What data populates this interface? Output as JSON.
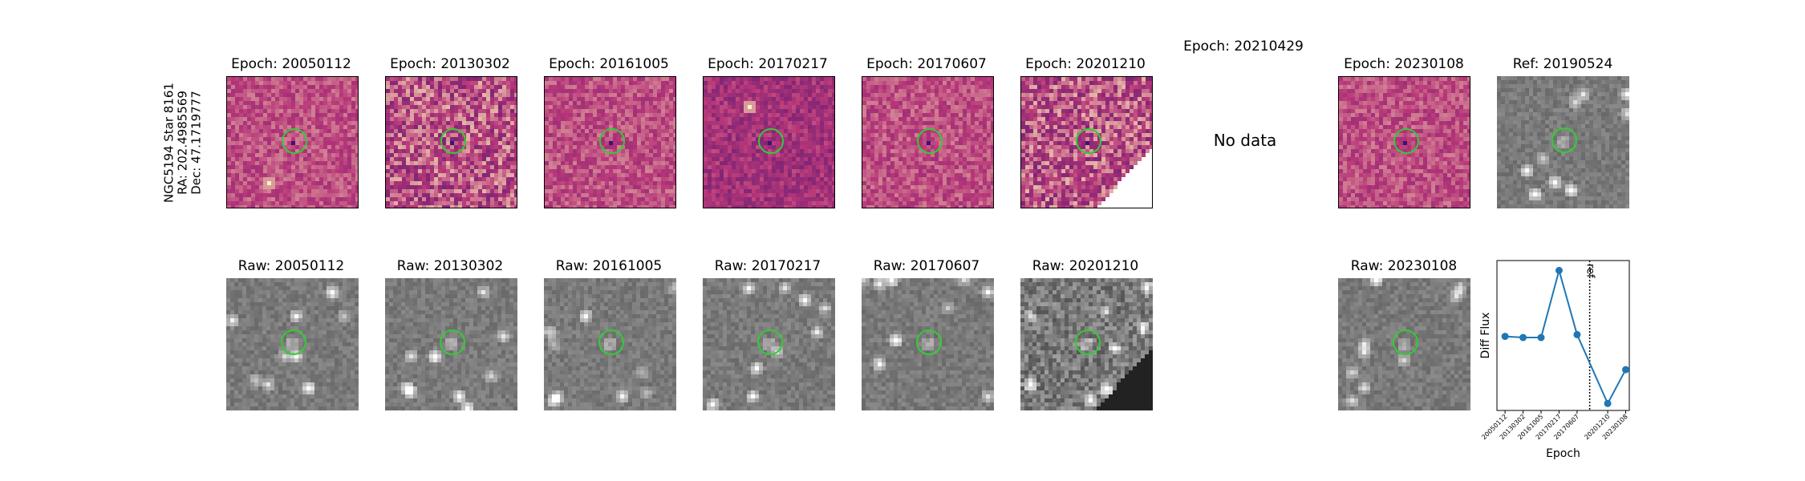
{
  "object": {
    "name": "NGC5194 Star 8161",
    "ra": "RA: 202.4985569",
    "dec": "Dec: 47.1719777"
  },
  "diff_titles": [
    "Epoch: 20050112",
    "Epoch: 20130302",
    "Epoch: 20161005",
    "Epoch: 20170217",
    "Epoch: 20170607",
    "Epoch: 20201210",
    "Epoch: 20210429",
    "Epoch: 20230108",
    "Ref: 20190524"
  ],
  "raw_titles": [
    "Raw: 20050112",
    "Raw: 20130302",
    "Raw: 20161005",
    "Raw: 20170217",
    "Raw: 20170607",
    "Raw: 20201210",
    "Raw: 20230108"
  ],
  "no_data_text": "No data",
  "colors": {
    "line": "#1f77b4",
    "aperture": "#33cc33",
    "diff_low": "#3b0f70",
    "diff_mid": "#b73779",
    "diff_high": "#fcfdbf"
  },
  "chart_data": {
    "type": "line",
    "title": "",
    "xlabel": "Epoch",
    "ylabel": "Diff Flux",
    "categories": [
      "20050112",
      "20130302",
      "20161005",
      "20170217",
      "20170607",
      "20201210",
      "20230108"
    ],
    "x": [
      0,
      1,
      2,
      3,
      4,
      5.7,
      6.7
    ],
    "values": [
      0.42,
      0.4,
      0.4,
      1.55,
      0.45,
      -0.73,
      -0.15
    ],
    "ylim": [
      -0.85,
      1.72
    ],
    "xlim": [
      -0.45,
      6.9
    ],
    "ref_x": 4.7,
    "ref_label": "ref",
    "grid": false
  }
}
